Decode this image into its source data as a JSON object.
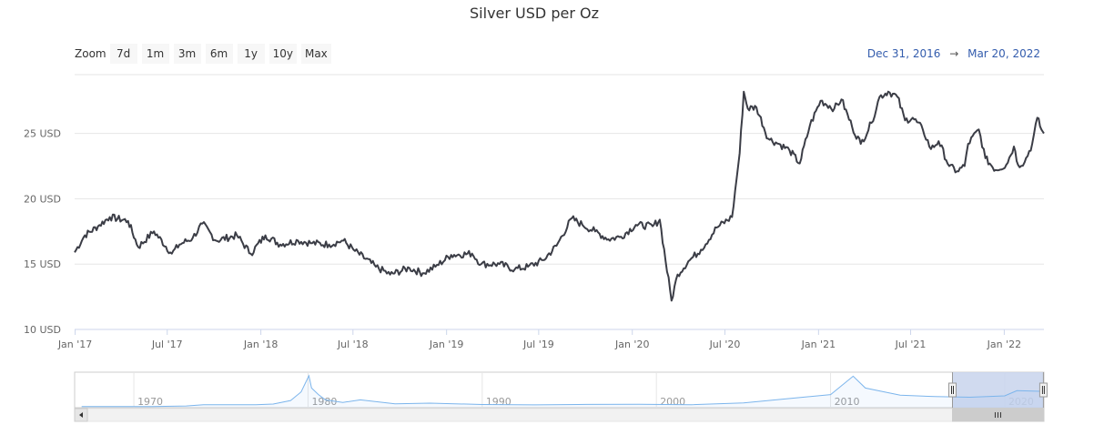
{
  "title": "Silver USD per Oz",
  "zoom": {
    "label": "Zoom",
    "buttons": [
      "7d",
      "1m",
      "3m",
      "6m",
      "1y",
      "10y",
      "Max"
    ]
  },
  "range": {
    "from": "Dec 31, 2016",
    "separator": "→",
    "to": "Mar 20, 2022"
  },
  "colors": {
    "line": "#3b3d46",
    "grid": "#e6e6e6",
    "navigator_line": "#7cb5ec",
    "navigator_mask": "#c8d3ec",
    "range_text": "#335cad"
  },
  "chart_data": {
    "type": "line",
    "title": "Silver USD per Oz",
    "xlabel": "",
    "ylabel": "",
    "ylim": [
      10,
      29.5
    ],
    "xlim": [
      "2016-12-31",
      "2022-03-20"
    ],
    "yticks": [
      10,
      15,
      20,
      25
    ],
    "ytick_labels": [
      "10 USD",
      "15 USD",
      "20 USD",
      "25 USD"
    ],
    "xticks": [
      "2017-01-01",
      "2017-07-01",
      "2018-01-01",
      "2018-07-01",
      "2019-01-01",
      "2019-07-01",
      "2020-01-01",
      "2020-07-01",
      "2021-01-01",
      "2021-07-01",
      "2022-01-01"
    ],
    "xtick_labels": [
      "Jan '17",
      "Jul '17",
      "Jan '18",
      "Jul '18",
      "Jan '19",
      "Jul '19",
      "Jan '20",
      "Jul '20",
      "Jan '21",
      "Jul '21",
      "Jan '22"
    ],
    "grid": true,
    "legend": "none",
    "series": [
      {
        "x": [
          "2016-12-31",
          "2017-01-20",
          "2017-02-15",
          "2017-03-10",
          "2017-04-15",
          "2017-05-05",
          "2017-06-05",
          "2017-07-10",
          "2017-07-25",
          "2017-08-20",
          "2017-09-08",
          "2017-10-05",
          "2017-11-15",
          "2017-12-12",
          "2018-01-10",
          "2018-02-08",
          "2018-03-15",
          "2018-04-12",
          "2018-05-15",
          "2018-06-12",
          "2018-07-05",
          "2018-08-15",
          "2018-09-12",
          "2018-10-20",
          "2018-11-15",
          "2018-12-10",
          "2019-01-10",
          "2019-02-20",
          "2019-03-10",
          "2019-04-15",
          "2019-05-15",
          "2019-06-10",
          "2019-07-10",
          "2019-08-05",
          "2019-09-04",
          "2019-09-25",
          "2019-10-20",
          "2019-11-15",
          "2019-12-10",
          "2020-01-08",
          "2020-02-10",
          "2020-02-24",
          "2020-03-18",
          "2020-03-30",
          "2020-04-20",
          "2020-05-15",
          "2020-06-15",
          "2020-07-15",
          "2020-07-30",
          "2020-08-07",
          "2020-08-15",
          "2020-09-01",
          "2020-09-24",
          "2020-10-15",
          "2020-11-05",
          "2020-11-25",
          "2020-12-15",
          "2021-01-05",
          "2021-02-01",
          "2021-02-15",
          "2021-03-08",
          "2021-03-25",
          "2021-04-15",
          "2021-05-01",
          "2021-05-18",
          "2021-06-05",
          "2021-06-20",
          "2021-07-05",
          "2021-07-25",
          "2021-08-10",
          "2021-08-25",
          "2021-09-15",
          "2021-09-30",
          "2021-10-15",
          "2021-10-22",
          "2021-11-12",
          "2021-11-25",
          "2021-12-15",
          "2022-01-05",
          "2022-01-20",
          "2022-01-28",
          "2022-02-10",
          "2022-02-25",
          "2022-03-07",
          "2022-03-15",
          "2022-03-20"
        ],
        "y": [
          15.9,
          17.2,
          17.9,
          18.6,
          18.3,
          16.3,
          17.5,
          15.8,
          16.5,
          17.0,
          18.1,
          16.8,
          17.2,
          15.8,
          17.2,
          16.5,
          16.8,
          16.6,
          16.5,
          16.8,
          16.0,
          14.8,
          14.2,
          14.7,
          14.3,
          14.8,
          15.7,
          15.8,
          15.0,
          15.0,
          14.6,
          14.8,
          15.3,
          16.4,
          18.5,
          18.0,
          17.5,
          16.9,
          17.1,
          18.0,
          17.9,
          18.4,
          12.2,
          14.2,
          15.2,
          16.1,
          17.8,
          18.6,
          23.5,
          28.2,
          26.9,
          27.0,
          24.6,
          24.2,
          23.7,
          22.7,
          25.6,
          27.5,
          26.9,
          27.6,
          25.5,
          24.2,
          25.8,
          27.8,
          28.2,
          27.8,
          26.0,
          26.2,
          25.3,
          23.8,
          24.4,
          22.5,
          22.1,
          22.5,
          24.2,
          25.3,
          23.1,
          22.2,
          22.6,
          24.0,
          22.6,
          22.8,
          24.2,
          26.2,
          25.3,
          25.0
        ]
      }
    ]
  },
  "navigator": {
    "ticks": [
      "1970",
      "1980",
      "1990",
      "2000",
      "2010",
      "2020"
    ],
    "x": [
      1967,
      1969,
      1971,
      1973,
      1974,
      1975,
      1977,
      1978,
      1979,
      1979.6,
      1980.05,
      1980.2,
      1980.6,
      1981,
      1982,
      1983,
      1985,
      1987,
      1990,
      1993,
      1996,
      1999,
      2002,
      2005,
      2008,
      2010,
      2011.3,
      2012,
      2014,
      2016,
      2018,
      2020,
      2020.7,
      2022.2
    ],
    "y": [
      1.6,
      1.8,
      1.6,
      2.6,
      4.5,
      4.4,
      4.6,
      5.5,
      11,
      24,
      48.7,
      30,
      20,
      12,
      8,
      12,
      6,
      7,
      4.8,
      4.3,
      5,
      5.2,
      4.6,
      7.3,
      15,
      20,
      48,
      30,
      19,
      17,
      16,
      18,
      26,
      25
    ],
    "ylim": [
      0,
      50
    ],
    "xlim": [
      1966.6,
      2022.25
    ],
    "selected": [
      "2016-12-31",
      "2022-03-20"
    ]
  }
}
